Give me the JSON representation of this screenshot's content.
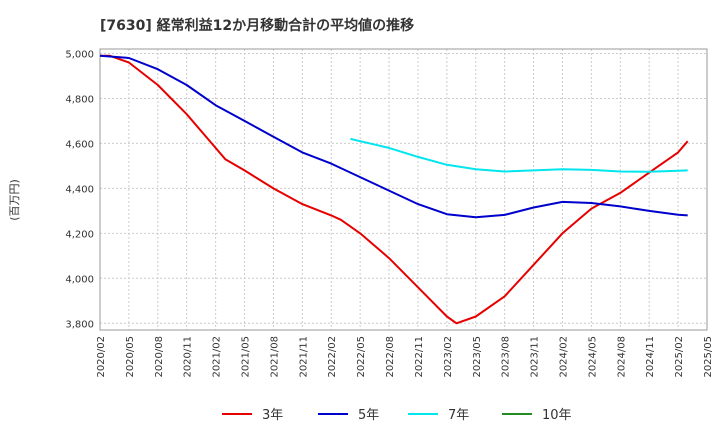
{
  "chart_data": {
    "type": "line",
    "title": "[7630]  経常利益12か月移動合計の平均値の推移",
    "ylabel": "(百万円)",
    "xlabel": "",
    "ylim": [
      3770,
      5020
    ],
    "yticks": [
      3800,
      4000,
      4200,
      4400,
      4600,
      4800,
      5000
    ],
    "ytick_labels": [
      "3,800",
      "4,000",
      "4,200",
      "4,400",
      "4,600",
      "4,800",
      "5,000"
    ],
    "xticks": [
      "2020/02",
      "2020/05",
      "2020/08",
      "2020/11",
      "2021/02",
      "2021/05",
      "2021/08",
      "2021/11",
      "2022/02",
      "2022/05",
      "2022/08",
      "2022/11",
      "2023/02",
      "2023/05",
      "2023/08",
      "2023/11",
      "2024/02",
      "2024/05",
      "2024/08",
      "2024/11",
      "2025/02",
      "2025/05"
    ],
    "grid": true,
    "legend_position": "bottom",
    "series": [
      {
        "name": "3年",
        "color": "#e60000",
        "points": [
          [
            "2020/02",
            4990
          ],
          [
            "2020/03",
            4990
          ],
          [
            "2020/05",
            4960
          ],
          [
            "2020/08",
            4860
          ],
          [
            "2020/11",
            4730
          ],
          [
            "2021/02",
            4580
          ],
          [
            "2021/03",
            4530
          ],
          [
            "2021/05",
            4480
          ],
          [
            "2021/08",
            4400
          ],
          [
            "2021/11",
            4330
          ],
          [
            "2022/02",
            4280
          ],
          [
            "2022/03",
            4260
          ],
          [
            "2022/05",
            4200
          ],
          [
            "2022/08",
            4090
          ],
          [
            "2022/11",
            3960
          ],
          [
            "2023/02",
            3830
          ],
          [
            "2023/03",
            3800
          ],
          [
            "2023/05",
            3830
          ],
          [
            "2023/08",
            3920
          ],
          [
            "2023/11",
            4060
          ],
          [
            "2024/02",
            4200
          ],
          [
            "2024/05",
            4310
          ],
          [
            "2024/08",
            4380
          ],
          [
            "2024/11",
            4470
          ],
          [
            "2025/02",
            4560
          ],
          [
            "2025/03",
            4610
          ]
        ]
      },
      {
        "name": "5年",
        "color": "#0000cc",
        "points": [
          [
            "2020/02",
            4990
          ],
          [
            "2020/05",
            4980
          ],
          [
            "2020/08",
            4930
          ],
          [
            "2020/11",
            4860
          ],
          [
            "2021/02",
            4770
          ],
          [
            "2021/05",
            4700
          ],
          [
            "2021/08",
            4630
          ],
          [
            "2021/11",
            4560
          ],
          [
            "2022/02",
            4510
          ],
          [
            "2022/05",
            4450
          ],
          [
            "2022/08",
            4390
          ],
          [
            "2022/11",
            4330
          ],
          [
            "2023/02",
            4285
          ],
          [
            "2023/05",
            4272
          ],
          [
            "2023/08",
            4282
          ],
          [
            "2023/11",
            4315
          ],
          [
            "2024/02",
            4340
          ],
          [
            "2024/05",
            4335
          ],
          [
            "2024/08",
            4320
          ],
          [
            "2024/11",
            4300
          ],
          [
            "2025/02",
            4283
          ],
          [
            "2025/03",
            4280
          ]
        ]
      },
      {
        "name": "7年",
        "color": "#00e5ee",
        "points": [
          [
            "2022/04",
            4620
          ],
          [
            "2022/05",
            4610
          ],
          [
            "2022/08",
            4580
          ],
          [
            "2022/11",
            4540
          ],
          [
            "2023/02",
            4505
          ],
          [
            "2023/05",
            4485
          ],
          [
            "2023/08",
            4475
          ],
          [
            "2023/11",
            4480
          ],
          [
            "2024/02",
            4485
          ],
          [
            "2024/05",
            4482
          ],
          [
            "2024/08",
            4475
          ],
          [
            "2024/11",
            4474
          ],
          [
            "2025/02",
            4478
          ],
          [
            "2025/03",
            4480
          ]
        ]
      },
      {
        "name": "10年",
        "color": "#228b22",
        "points": []
      }
    ]
  }
}
